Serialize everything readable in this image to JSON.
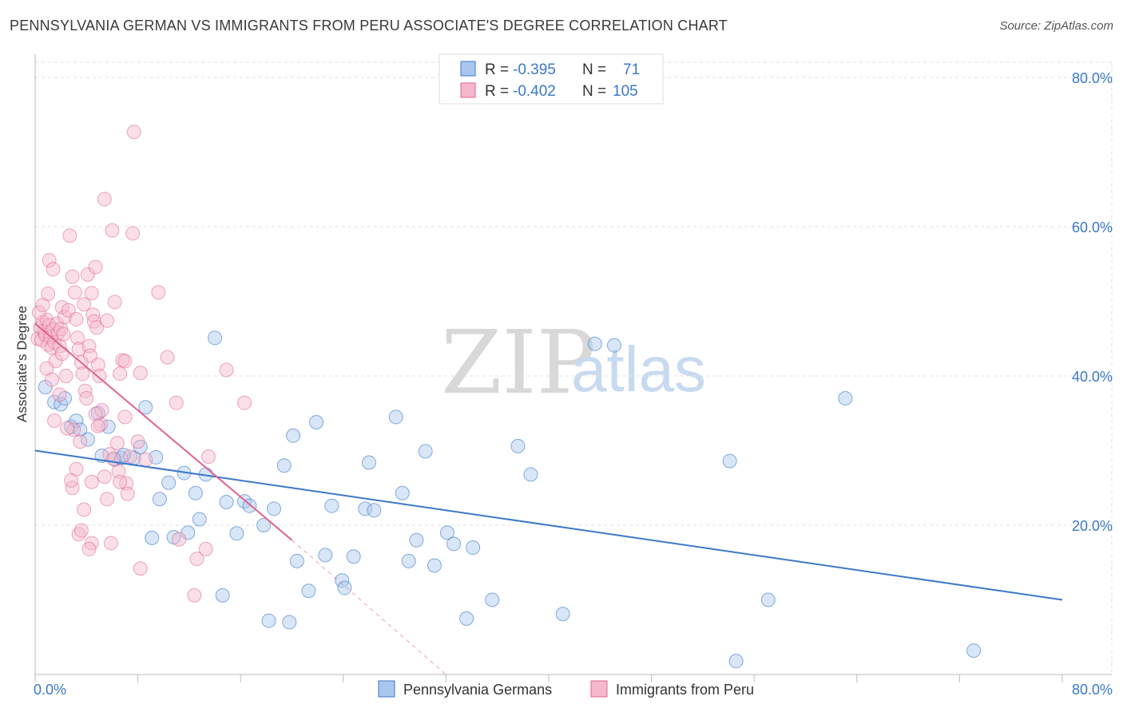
{
  "title": "PENNSYLVANIA GERMAN VS IMMIGRANTS FROM PERU ASSOCIATE'S DEGREE CORRELATION CHART",
  "source": "Source: ZipAtlas.com",
  "watermark": {
    "zip": "ZIP",
    "atlas": "atlas"
  },
  "colors": {
    "blue": "#3b78c7",
    "blue_fill": "#a9c7ee",
    "pink": "#e2638f",
    "pink_fill": "#f5b7cb"
  },
  "legend": {
    "rows": [
      {
        "r_label": "R = ",
        "r_value": "-0.395",
        "n_label": "N = ",
        "n_value": " 71"
      },
      {
        "r_label": "R = ",
        "r_value": "-0.402",
        "n_label": "N = ",
        "n_value": "105"
      }
    ]
  },
  "chart_data": {
    "type": "scatter",
    "title": "PENNSYLVANIA GERMAN VS IMMIGRANTS FROM PERU ASSOCIATE'S DEGREE CORRELATION CHART",
    "xlabel": "",
    "ylabel": "Associate's Degree",
    "xlim": [
      0,
      80
    ],
    "ylim": [
      0,
      80
    ],
    "x_tick_labels": [
      "0.0%",
      "80.0%"
    ],
    "y_tick_labels": [
      "20.0%",
      "40.0%",
      "60.0%",
      "80.0%"
    ],
    "y_ticks": [
      20,
      40,
      60,
      80
    ],
    "legend_entries": [
      "Pennsylvania Germans",
      "Immigrants from Peru"
    ],
    "series": [
      {
        "name": "Pennsylvania Germans",
        "trend": {
          "x0": 0,
          "y0": 30.0,
          "x1": 80,
          "y1": 10.0
        },
        "points": [
          [
            0.8,
            38.5
          ],
          [
            1.5,
            36.5
          ],
          [
            2.0,
            36.2
          ],
          [
            2.3,
            37.0
          ],
          [
            2.8,
            33.2
          ],
          [
            3.2,
            34.0
          ],
          [
            3.5,
            32.8
          ],
          [
            4.1,
            31.5
          ],
          [
            4.9,
            35.0
          ],
          [
            5.7,
            33.2
          ],
          [
            5.2,
            29.3
          ],
          [
            6.2,
            28.8
          ],
          [
            6.7,
            29.0
          ],
          [
            7.7,
            29.0
          ],
          [
            8.2,
            30.5
          ],
          [
            8.6,
            35.8
          ],
          [
            9.1,
            18.3
          ],
          [
            9.7,
            23.5
          ],
          [
            10.4,
            25.7
          ],
          [
            10.8,
            18.4
          ],
          [
            11.6,
            27.0
          ],
          [
            11.9,
            19.0
          ],
          [
            12.5,
            24.3
          ],
          [
            12.8,
            20.8
          ],
          [
            13.3,
            26.8
          ],
          [
            14.0,
            45.1
          ],
          [
            14.6,
            10.6
          ],
          [
            14.9,
            23.1
          ],
          [
            15.7,
            18.9
          ],
          [
            16.3,
            23.2
          ],
          [
            16.7,
            22.6
          ],
          [
            17.8,
            20.0
          ],
          [
            18.2,
            7.2
          ],
          [
            18.6,
            22.2
          ],
          [
            19.4,
            28.0
          ],
          [
            20.1,
            32.0
          ],
          [
            20.4,
            15.2
          ],
          [
            21.3,
            11.2
          ],
          [
            21.9,
            33.8
          ],
          [
            22.6,
            16.0
          ],
          [
            23.1,
            22.6
          ],
          [
            23.9,
            12.6
          ],
          [
            24.1,
            11.6
          ],
          [
            24.8,
            15.8
          ],
          [
            25.7,
            22.2
          ],
          [
            26.4,
            22.0
          ],
          [
            26.0,
            28.4
          ],
          [
            28.1,
            34.5
          ],
          [
            28.6,
            24.3
          ],
          [
            29.1,
            15.2
          ],
          [
            29.7,
            18.0
          ],
          [
            30.4,
            29.9
          ],
          [
            31.1,
            14.6
          ],
          [
            32.1,
            19.0
          ],
          [
            32.6,
            17.5
          ],
          [
            33.6,
            7.5
          ],
          [
            34.1,
            17.0
          ],
          [
            35.6,
            10.0
          ],
          [
            37.6,
            30.6
          ],
          [
            38.6,
            26.8
          ],
          [
            41.1,
            8.1
          ],
          [
            43.6,
            44.3
          ],
          [
            45.1,
            44.1
          ],
          [
            54.1,
            28.6
          ],
          [
            54.6,
            1.8
          ],
          [
            57.1,
            10.0
          ],
          [
            63.1,
            37.0
          ],
          [
            73.1,
            3.2
          ],
          [
            19.8,
            7.0
          ],
          [
            9.4,
            29.1
          ],
          [
            6.9,
            29.4
          ]
        ]
      },
      {
        "name": "Immigrants from Peru",
        "trend": {
          "x0": 0,
          "y0": 47.0,
          "x1": 20.0,
          "y1": 18.0,
          "dashed_to": {
            "x": 32.0,
            "y": 0.0
          }
        },
        "points": [
          [
            0.2,
            45.0
          ],
          [
            0.4,
            46.5
          ],
          [
            0.5,
            44.8
          ],
          [
            0.6,
            47.2
          ],
          [
            0.7,
            46.0
          ],
          [
            0.8,
            45.5
          ],
          [
            0.9,
            47.5
          ],
          [
            1.0,
            44.2
          ],
          [
            1.1,
            46.8
          ],
          [
            1.2,
            45.2
          ],
          [
            1.3,
            43.8
          ],
          [
            1.4,
            46.2
          ],
          [
            1.5,
            44.5
          ],
          [
            1.6,
            42.0
          ],
          [
            1.7,
            47.0
          ],
          [
            1.8,
            45.8
          ],
          [
            1.9,
            44.0
          ],
          [
            2.0,
            46.3
          ],
          [
            2.1,
            43.0
          ],
          [
            2.2,
            45.6
          ],
          [
            0.3,
            48.5
          ],
          [
            0.6,
            49.5
          ],
          [
            1.0,
            51.0
          ],
          [
            1.1,
            55.5
          ],
          [
            1.4,
            54.3
          ],
          [
            2.1,
            49.2
          ],
          [
            2.3,
            47.9
          ],
          [
            2.6,
            48.8
          ],
          [
            2.7,
            58.8
          ],
          [
            2.9,
            53.3
          ],
          [
            3.1,
            51.2
          ],
          [
            3.2,
            47.6
          ],
          [
            3.3,
            45.1
          ],
          [
            3.4,
            43.6
          ],
          [
            3.6,
            41.8
          ],
          [
            3.7,
            40.3
          ],
          [
            3.8,
            49.6
          ],
          [
            3.9,
            38.0
          ],
          [
            4.0,
            37.0
          ],
          [
            4.1,
            53.6
          ],
          [
            4.2,
            44.0
          ],
          [
            4.3,
            42.7
          ],
          [
            4.4,
            51.1
          ],
          [
            4.5,
            48.2
          ],
          [
            4.6,
            47.3
          ],
          [
            4.7,
            54.6
          ],
          [
            4.8,
            46.5
          ],
          [
            4.9,
            41.5
          ],
          [
            5.0,
            40.0
          ],
          [
            5.1,
            33.5
          ],
          [
            5.2,
            35.4
          ],
          [
            5.4,
            63.7
          ],
          [
            5.6,
            47.4
          ],
          [
            5.8,
            29.5
          ],
          [
            6.0,
            59.5
          ],
          [
            6.2,
            49.9
          ],
          [
            6.4,
            31.0
          ],
          [
            6.6,
            40.3
          ],
          [
            6.8,
            42.1
          ],
          [
            7.0,
            34.5
          ],
          [
            7.1,
            25.6
          ],
          [
            7.2,
            24.2
          ],
          [
            7.4,
            29.2
          ],
          [
            7.6,
            59.1
          ],
          [
            7.7,
            72.7
          ],
          [
            8.0,
            31.2
          ],
          [
            8.2,
            40.4
          ],
          [
            8.6,
            28.8
          ],
          [
            9.6,
            51.2
          ],
          [
            10.3,
            42.5
          ],
          [
            11.0,
            36.4
          ],
          [
            11.2,
            18.1
          ],
          [
            12.4,
            10.6
          ],
          [
            12.6,
            15.5
          ],
          [
            13.3,
            16.8
          ],
          [
            13.5,
            29.2
          ],
          [
            14.9,
            40.8
          ],
          [
            16.3,
            36.4
          ],
          [
            8.2,
            14.2
          ],
          [
            4.4,
            17.6
          ],
          [
            2.9,
            25.0
          ],
          [
            3.0,
            32.8
          ],
          [
            3.2,
            27.5
          ],
          [
            3.4,
            18.8
          ],
          [
            3.6,
            19.3
          ],
          [
            3.8,
            22.1
          ],
          [
            4.2,
            16.8
          ],
          [
            4.4,
            25.8
          ],
          [
            4.7,
            34.9
          ],
          [
            4.9,
            33.3
          ],
          [
            5.4,
            26.5
          ],
          [
            5.6,
            23.5
          ],
          [
            5.9,
            17.6
          ],
          [
            6.1,
            28.9
          ],
          [
            6.5,
            27.2
          ],
          [
            6.6,
            25.8
          ],
          [
            7.0,
            42.0
          ],
          [
            1.5,
            34.0
          ],
          [
            2.5,
            33.0
          ],
          [
            1.9,
            37.5
          ],
          [
            0.9,
            41.0
          ],
          [
            1.3,
            39.5
          ],
          [
            2.4,
            40.0
          ],
          [
            3.5,
            31.2
          ],
          [
            2.8,
            26.0
          ]
        ]
      }
    ]
  },
  "bottom_legend": [
    "Pennsylvania Germans",
    "Immigrants from Peru"
  ]
}
